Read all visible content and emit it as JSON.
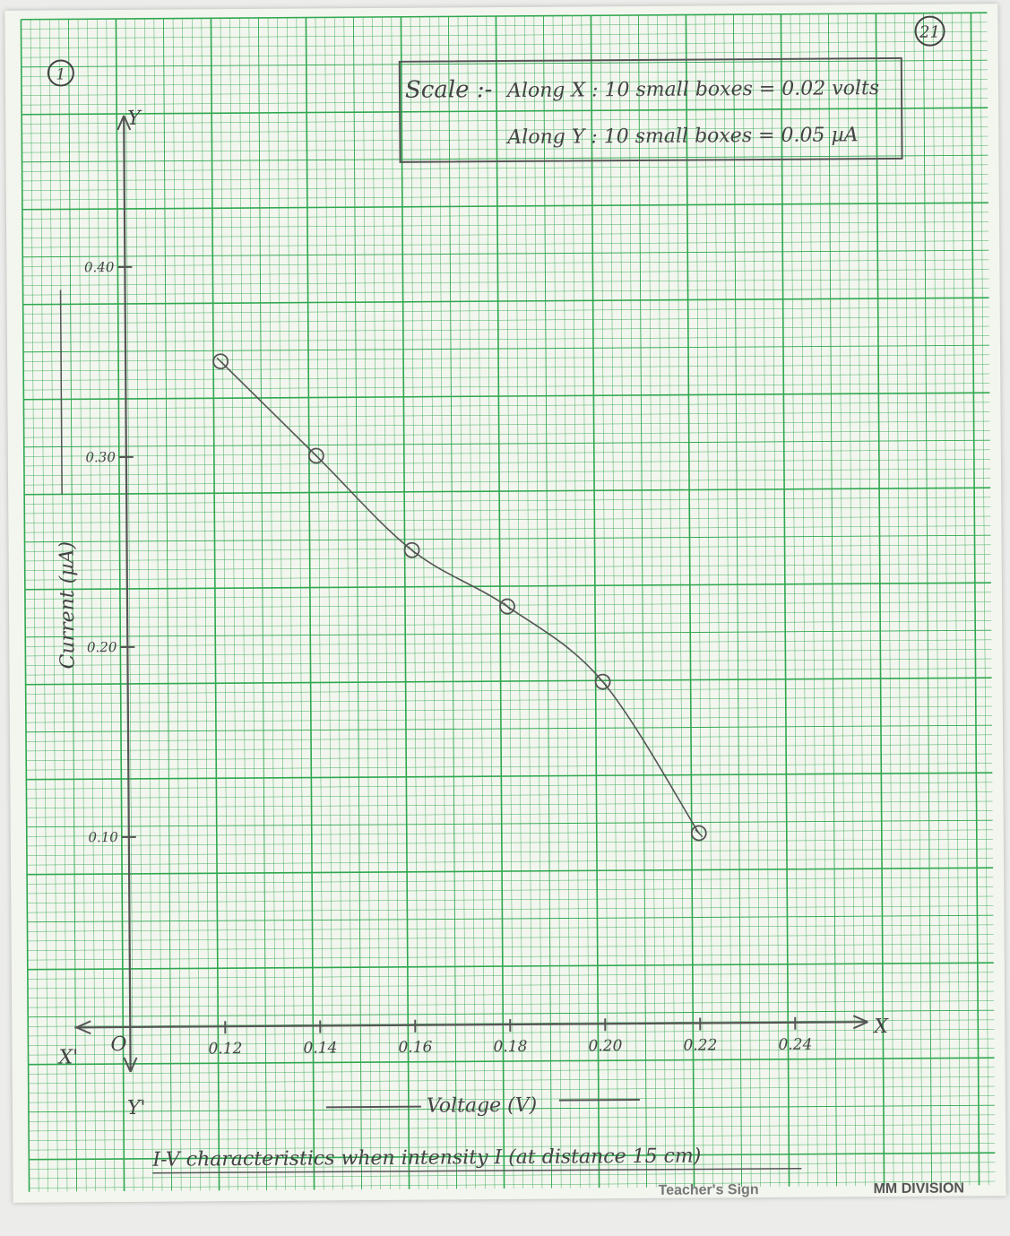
{
  "page": {
    "number": "21",
    "graph_number": "1",
    "footer_text": "Teacher's Sign",
    "footer_brand": "MM DIVISION"
  },
  "scale_box": {
    "title": "Scale :-",
    "line_x": "Along X : 10 small boxes = 0.02 volts",
    "line_y": "Along Y : 10 small boxes = 0.05 µA"
  },
  "chart_data": {
    "type": "line",
    "title": "I-V characteristics when intensity I (at distance 15 cm)",
    "xlabel": "Voltage (V)",
    "ylabel": "Current (µA)",
    "x_axis_name": "X",
    "x_axis_neg_name": "X'",
    "y_axis_name": "Y",
    "y_axis_neg_name": "Y'",
    "origin_label": "O",
    "xlim": [
      0.1,
      0.26
    ],
    "ylim": [
      0.0,
      0.45
    ],
    "x_ticks": [
      {
        "value": 0.12,
        "label": "0.12"
      },
      {
        "value": 0.14,
        "label": "0.14"
      },
      {
        "value": 0.16,
        "label": "0.16"
      },
      {
        "value": 0.18,
        "label": "0.18"
      },
      {
        "value": 0.2,
        "label": "0.20"
      },
      {
        "value": 0.22,
        "label": "0.22"
      },
      {
        "value": 0.24,
        "label": "0.24"
      }
    ],
    "y_ticks": [
      {
        "value": 0.1,
        "label": "0.10"
      },
      {
        "value": 0.2,
        "label": "0.20"
      },
      {
        "value": 0.3,
        "label": "0.30"
      },
      {
        "value": 0.4,
        "label": "0.40"
      }
    ],
    "x": [
      0.12,
      0.14,
      0.16,
      0.18,
      0.2,
      0.22
    ],
    "y": [
      0.35,
      0.3,
      0.25,
      0.22,
      0.18,
      0.1
    ],
    "grid": true,
    "colors": {
      "grid": "#2fa84f",
      "line": "#555555"
    }
  }
}
